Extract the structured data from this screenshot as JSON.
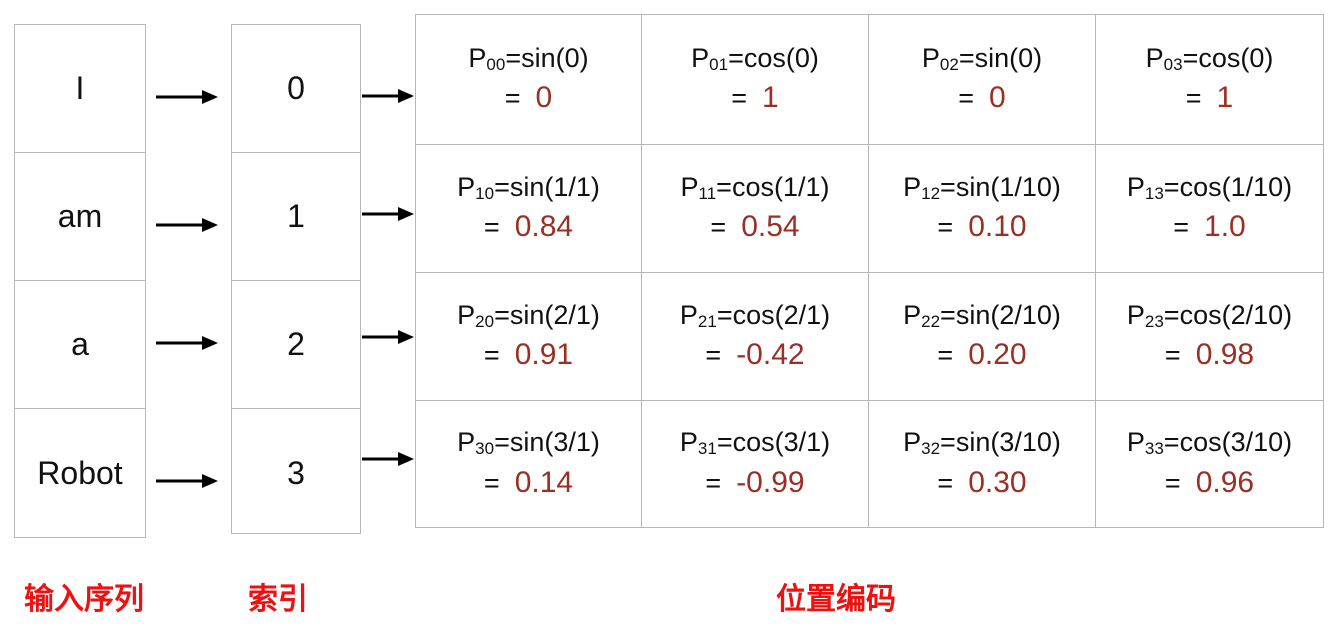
{
  "tokens": [
    "I",
    "am",
    "a",
    "Robot"
  ],
  "indices": [
    "0",
    "1",
    "2",
    "3"
  ],
  "matrix": [
    [
      {
        "p": "P",
        "sub": "00",
        "expr": "=sin(0)",
        "eq": "= ",
        "val": "0"
      },
      {
        "p": "P",
        "sub": "01",
        "expr": "=cos(0)",
        "eq": "= ",
        "val": "1"
      },
      {
        "p": "P",
        "sub": "02",
        "expr": "=sin(0)",
        "eq": "= ",
        "val": "0"
      },
      {
        "p": "P",
        "sub": "03",
        "expr": "=cos(0)",
        "eq": "= ",
        "val": "1"
      }
    ],
    [
      {
        "p": "P",
        "sub": "10",
        "expr": "=sin(1/1)",
        "eq": "= ",
        "val": "0.84"
      },
      {
        "p": "P",
        "sub": "11",
        "expr": "=cos(1/1)",
        "eq": "= ",
        "val": "0.54"
      },
      {
        "p": "P",
        "sub": "12",
        "expr": "=sin(1/10)",
        "eq": "= ",
        "val": "0.10"
      },
      {
        "p": "P",
        "sub": "13",
        "expr": "=cos(1/10)",
        "eq": "= ",
        "val": "1.0"
      }
    ],
    [
      {
        "p": "P",
        "sub": "20",
        "expr": "=sin(2/1)",
        "eq": "= ",
        "val": "0.91"
      },
      {
        "p": "P",
        "sub": "21",
        "expr": "=cos(2/1)",
        "eq": "= ",
        "val": "-0.42"
      },
      {
        "p": "P",
        "sub": "22",
        "expr": "=sin(2/10)",
        "eq": "= ",
        "val": "0.20"
      },
      {
        "p": "P",
        "sub": "23",
        "expr": "=cos(2/10)",
        "eq": "= ",
        "val": "0.98"
      }
    ],
    [
      {
        "p": "P",
        "sub": "30",
        "expr": "=sin(3/1)",
        "eq": "= ",
        "val": "0.14"
      },
      {
        "p": "P",
        "sub": "31",
        "expr": "=cos(3/1)",
        "eq": "= ",
        "val": "-0.99"
      },
      {
        "p": "P",
        "sub": "32",
        "expr": "=sin(3/10)",
        "eq": "= ",
        "val": "0.30"
      },
      {
        "p": "P",
        "sub": "33",
        "expr": "=cos(3/10)",
        "eq": "= ",
        "val": "0.96"
      }
    ]
  ],
  "captions": {
    "input_sequence": "输入序列",
    "index": "索引",
    "position_encoding": "位置编码"
  },
  "colors": {
    "value": "#9a2f25",
    "caption": "#ee1111",
    "border": "#b7b7b7"
  }
}
